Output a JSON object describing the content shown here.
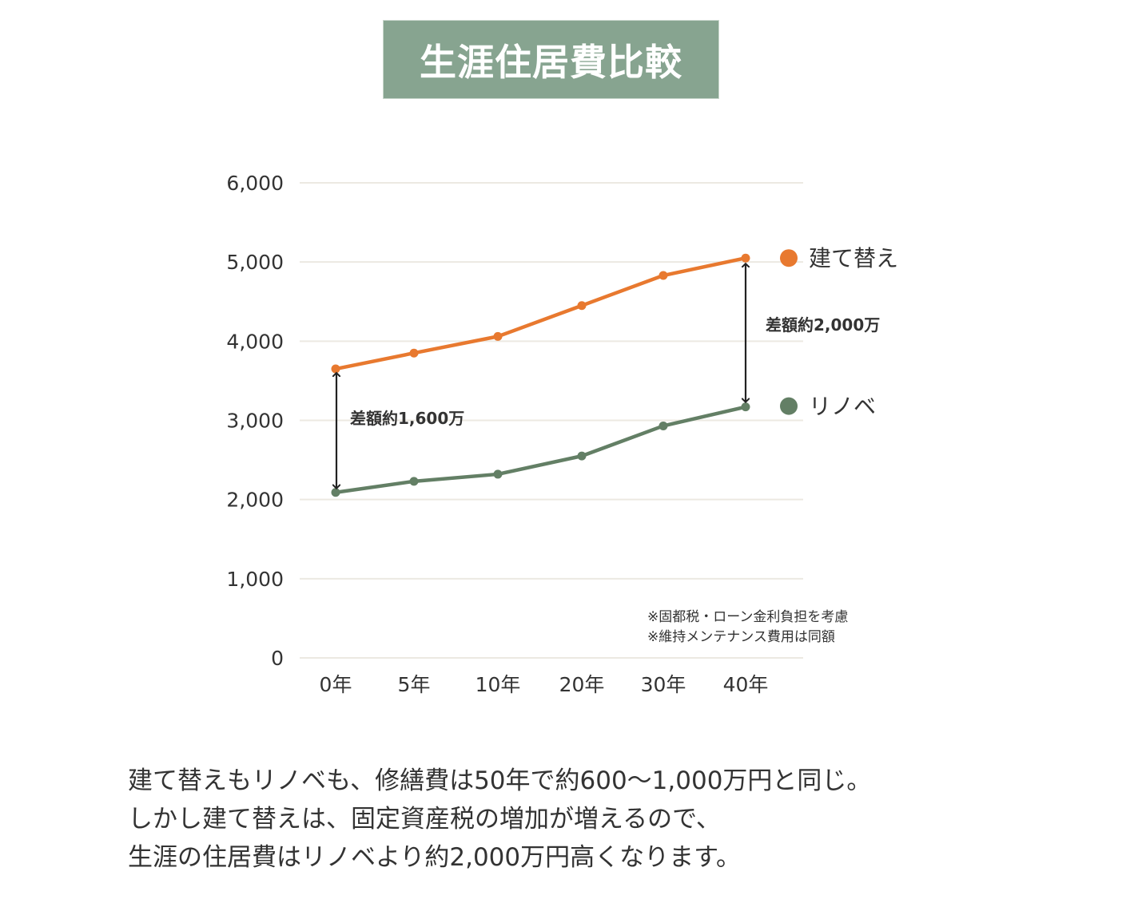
{
  "title": "生涯住居費比較",
  "chart_data": {
    "type": "line",
    "categories": [
      "0年",
      "5年",
      "10年",
      "20年",
      "30年",
      "40年"
    ],
    "y_ticks": [
      "6,000",
      "5,000",
      "4,000",
      "3,000",
      "2,000",
      "1,000",
      "0"
    ],
    "ylim": [
      0,
      6000
    ],
    "grid": true,
    "legend_position": "right",
    "series": [
      {
        "name": "建て替え",
        "color": "#e8792f",
        "values": [
          3650,
          3850,
          4060,
          4450,
          4830,
          5050
        ]
      },
      {
        "name": "リノベ",
        "color": "#637f65",
        "values": [
          2090,
          2230,
          2320,
          2550,
          2930,
          3170
        ]
      }
    ],
    "annotations": {
      "diff_start": "差額約1,600万",
      "diff_end": "差額約2,000万",
      "note1": "※固都税・ローン金利負担を考慮",
      "note2": "※維持メンテナンス費用は同額"
    }
  },
  "description": {
    "line1": "建て替えもリノベも、修繕費は50年で約600〜1,000万円と同じ。",
    "line2": "しかし建て替えは、固定資産税の増加が増えるので、",
    "line3": "生涯の住居費はリノベより約2,000万円高くなります。"
  }
}
